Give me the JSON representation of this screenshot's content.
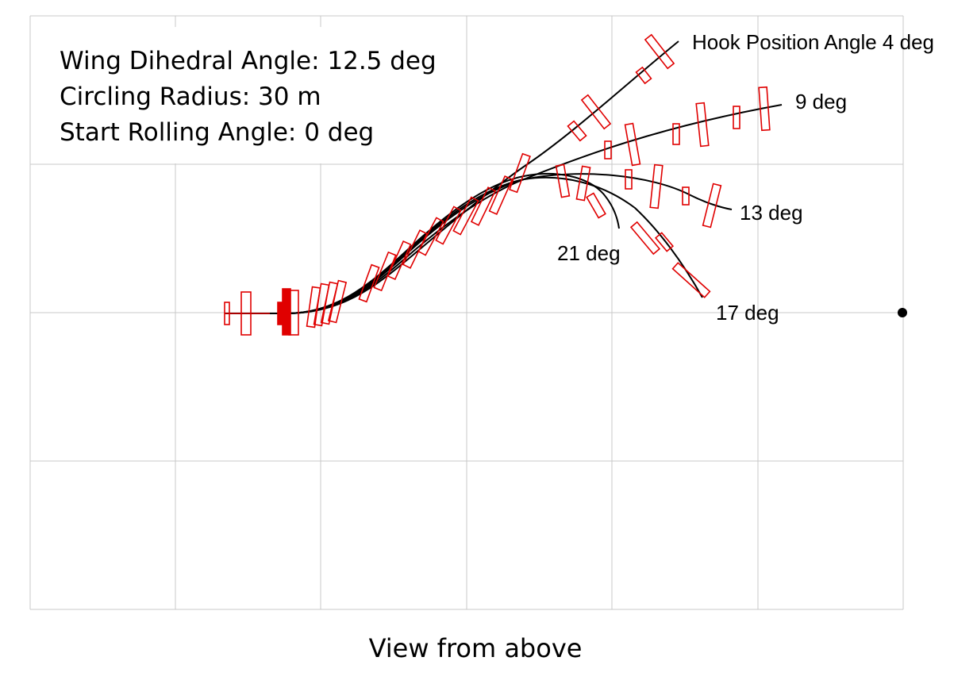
{
  "parameters": {
    "dihedral": "Wing Dihedral Angle: 12.5 deg",
    "radius": "Circling Radius: 30 m",
    "rolling": "Start Rolling Angle: 0 deg"
  },
  "caption": "View from above",
  "trajectories": [
    {
      "hook_angle_deg": 4,
      "label": "Hook Position Angle 4 deg"
    },
    {
      "hook_angle_deg": 9,
      "label": "9 deg"
    },
    {
      "hook_angle_deg": 13,
      "label": "13 deg"
    },
    {
      "hook_angle_deg": 17,
      "label": "17 deg"
    },
    {
      "hook_angle_deg": 21,
      "label": "21 deg"
    }
  ],
  "colors": {
    "glider_outline": "#e00000",
    "trajectory": "#000000",
    "grid": "#c8c8c8",
    "center_marker": "#000000"
  }
}
